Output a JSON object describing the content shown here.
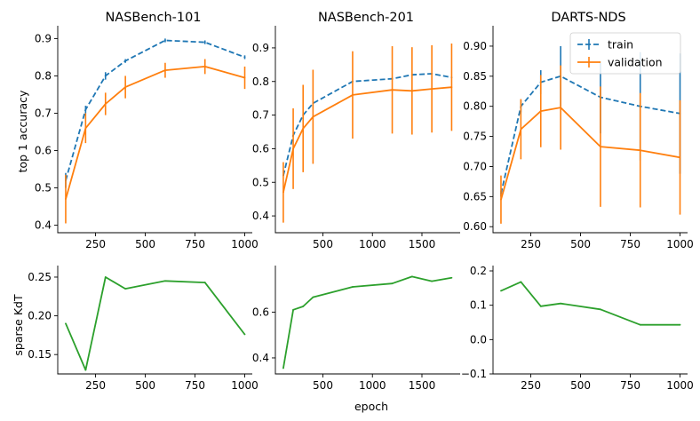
{
  "figure": {
    "ylabel_top": "top 1 accuracy",
    "ylabel_bottom": "sparse KdT",
    "xlabel": "epoch"
  },
  "colors": {
    "train": "#1f77b4",
    "validation": "#ff7f0e",
    "kdt": "#2ca02c"
  },
  "chart_data": [
    {
      "type": "line",
      "title": "NASBench-101",
      "xlabel": "",
      "ylabel": "top 1 accuracy",
      "xlim": [
        60,
        1020
      ],
      "ylim": [
        0.38,
        0.92
      ],
      "xticks": [
        250,
        500,
        750,
        1000
      ],
      "yticks": [
        0.4,
        0.5,
        0.6,
        0.7,
        0.8,
        0.9
      ],
      "ytick_labels": [
        "0.4",
        "0.5",
        "0.6",
        "0.7",
        "0.8",
        "0.9"
      ],
      "x": [
        100,
        200,
        300,
        400,
        600,
        800,
        1000
      ],
      "legend": false,
      "series": [
        {
          "name": "train",
          "style": "dashed",
          "values": [
            0.52,
            0.71,
            0.8,
            0.84,
            0.895,
            0.89,
            0.85
          ],
          "errors": [
            0.02,
            0.01,
            0.01,
            0.005,
            0.005,
            0.005,
            0.005
          ]
        },
        {
          "name": "validation",
          "style": "solid",
          "values": [
            0.47,
            0.66,
            0.725,
            0.77,
            0.815,
            0.825,
            0.795
          ],
          "errors": [
            0.065,
            0.04,
            0.03,
            0.03,
            0.02,
            0.02,
            0.03
          ]
        }
      ]
    },
    {
      "type": "line",
      "title": "NASBench-201",
      "xlabel": "",
      "ylabel": "",
      "xlim": [
        20,
        1850
      ],
      "ylim": [
        0.35,
        0.95
      ],
      "xticks": [
        500,
        1000,
        1500
      ],
      "yticks": [
        0.4,
        0.5,
        0.6,
        0.7,
        0.8,
        0.9
      ],
      "ytick_labels": [
        "0.4",
        "0.5",
        "0.6",
        "0.7",
        "0.8",
        "0.9"
      ],
      "x": [
        100,
        200,
        300,
        400,
        800,
        1200,
        1400,
        1600,
        1800
      ],
      "legend": false,
      "series": [
        {
          "name": "train",
          "style": "dashed",
          "values": [
            0.52,
            0.64,
            0.7,
            0.735,
            0.8,
            0.808,
            0.82,
            0.823,
            0.812
          ],
          "errors": [
            0,
            0,
            0,
            0,
            0,
            0,
            0,
            0,
            0
          ]
        },
        {
          "name": "validation",
          "style": "solid",
          "values": [
            0.47,
            0.6,
            0.66,
            0.695,
            0.76,
            0.775,
            0.772,
            0.778,
            0.783
          ],
          "errors": [
            0.09,
            0.12,
            0.13,
            0.14,
            0.13,
            0.13,
            0.13,
            0.13,
            0.13
          ]
        }
      ]
    },
    {
      "type": "line",
      "title": "DARTS-NDS",
      "xlabel": "",
      "ylabel": "",
      "xlim": [
        60,
        1020
      ],
      "ylim": [
        0.59,
        0.925
      ],
      "xticks": [
        250,
        500,
        750,
        1000
      ],
      "yticks": [
        0.6,
        0.65,
        0.7,
        0.75,
        0.8,
        0.85,
        0.9
      ],
      "ytick_labels": [
        "0.60",
        "0.65",
        "0.70",
        "0.75",
        "0.80",
        "0.85",
        "0.90"
      ],
      "x": [
        100,
        200,
        300,
        400,
        600,
        800,
        1000
      ],
      "legend": true,
      "series": [
        {
          "name": "train",
          "style": "dashed",
          "values": [
            0.655,
            0.8,
            0.84,
            0.85,
            0.815,
            0.8,
            0.788
          ],
          "errors": [
            0.005,
            0.01,
            0.02,
            0.05,
            0.06,
            0.09,
            0.1
          ]
        },
        {
          "name": "validation",
          "style": "solid",
          "values": [
            0.645,
            0.762,
            0.792,
            0.798,
            0.733,
            0.727,
            0.715
          ],
          "errors": [
            0.04,
            0.05,
            0.06,
            0.07,
            0.1,
            0.095,
            0.095
          ]
        }
      ]
    },
    {
      "type": "line",
      "title": "",
      "xlabel": "",
      "ylabel": "sparse KdT",
      "xlim": [
        60,
        1020
      ],
      "ylim": [
        0.125,
        0.258
      ],
      "xticks": [
        250,
        500,
        750,
        1000
      ],
      "yticks": [
        0.15,
        0.2,
        0.25
      ],
      "ytick_labels": [
        "0.15",
        "0.20",
        "0.25"
      ],
      "x": [
        100,
        200,
        300,
        400,
        600,
        800,
        1000
      ],
      "legend": false,
      "series": [
        {
          "name": "sparse KdT",
          "style": "solid",
          "values": [
            0.19,
            0.13,
            0.25,
            0.235,
            0.245,
            0.243,
            0.176
          ]
        }
      ]
    },
    {
      "type": "line",
      "title": "",
      "xlabel": "epoch",
      "ylabel": "",
      "xlim": [
        20,
        1850
      ],
      "ylim": [
        0.33,
        0.78
      ],
      "xticks": [
        500,
        1000,
        1500
      ],
      "yticks": [
        0.4,
        0.6
      ],
      "ytick_labels": [
        "0.4",
        "0.6"
      ],
      "x": [
        100,
        200,
        300,
        400,
        800,
        1200,
        1400,
        1600,
        1800
      ],
      "legend": false,
      "series": [
        {
          "name": "sparse KdT",
          "style": "solid",
          "values": [
            0.355,
            0.61,
            0.625,
            0.665,
            0.71,
            0.725,
            0.755,
            0.735,
            0.75
          ]
        }
      ]
    },
    {
      "type": "line",
      "title": "",
      "xlabel": "",
      "ylabel": "",
      "xlim": [
        60,
        1020
      ],
      "ylim": [
        -0.1,
        0.2
      ],
      "xticks": [
        250,
        500,
        750,
        1000
      ],
      "yticks": [
        -0.1,
        0.0,
        0.1,
        0.2
      ],
      "ytick_labels": [
        "−0.1",
        "0.0",
        "0.1",
        "0.2"
      ],
      "x": [
        100,
        200,
        300,
        400,
        600,
        800,
        1000
      ],
      "legend": false,
      "series": [
        {
          "name": "sparse KdT",
          "style": "solid",
          "values": [
            0.142,
            0.168,
            0.097,
            0.105,
            0.088,
            0.043,
            0.043
          ]
        }
      ]
    }
  ]
}
